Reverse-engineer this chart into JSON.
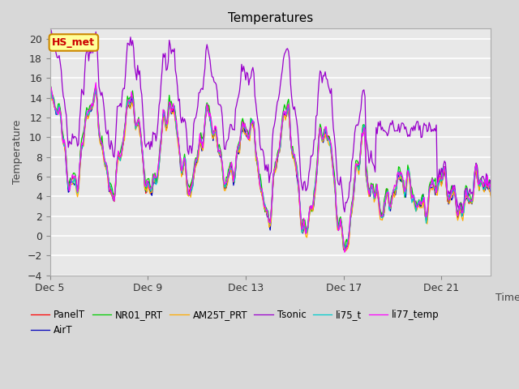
{
  "title": "Temperatures",
  "xlabel": "Time",
  "ylabel": "Temperature",
  "ylim": [
    -4,
    21
  ],
  "yticks": [
    -4,
    -2,
    0,
    2,
    4,
    6,
    8,
    10,
    12,
    14,
    16,
    18,
    20
  ],
  "xtick_labels": [
    "Dec 5",
    "Dec 9",
    "Dec 13",
    "Dec 17",
    "Dec 21"
  ],
  "xtick_positions": [
    0,
    96,
    192,
    288,
    384
  ],
  "n_points": 480,
  "points_per_day": 24,
  "background_color": "#d8d8d8",
  "plot_bg_color": "#e8e8e8",
  "series_colors": {
    "PanelT": "#ff0000",
    "AirT": "#0000bb",
    "NR01_PRT": "#00cc00",
    "AM25T_PRT": "#ffaa00",
    "Tsonic": "#9900cc",
    "li75_t": "#00cccc",
    "li77_temp": "#ff00ff"
  },
  "annotation_text": "HS_met",
  "annotation_color": "#cc0000",
  "annotation_bg": "#ffff99",
  "annotation_border": "#cc8800"
}
